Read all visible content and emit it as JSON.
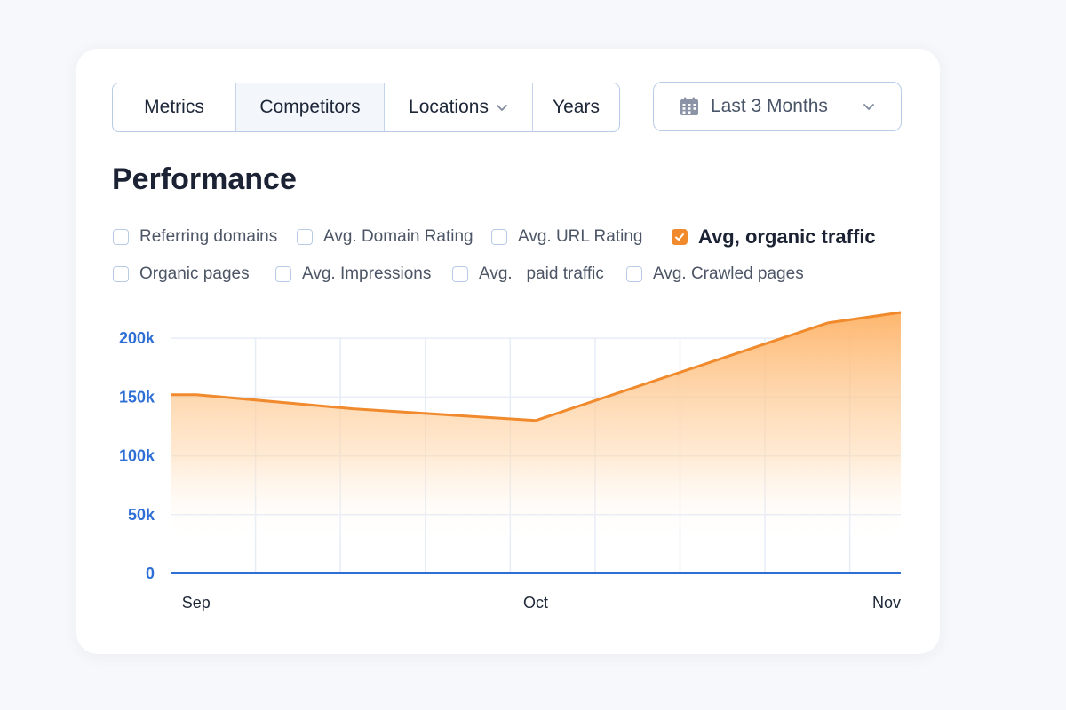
{
  "toolbar": {
    "segments": [
      {
        "label": "Metrics"
      },
      {
        "label": "Competitors"
      },
      {
        "label": "Locations"
      },
      {
        "label": "Years"
      }
    ],
    "date_range": {
      "label": "Last 3 Months",
      "icon": "calendar-icon"
    }
  },
  "section": {
    "title": "Performance"
  },
  "metrics": [
    {
      "label": "Referring domains",
      "checked": false
    },
    {
      "label": "Avg. Domain Rating",
      "checked": false
    },
    {
      "label": "Avg. URL Rating",
      "checked": false
    },
    {
      "label": "Avg, organic traffic",
      "checked": true
    },
    {
      "label": "Organic pages",
      "checked": false
    },
    {
      "label": "Avg. Impressions",
      "checked": false
    },
    {
      "label": "Avg.   paid traffic",
      "checked": false
    },
    {
      "label": "Avg. Crawled pages",
      "checked": false
    }
  ],
  "colors": {
    "accent": "#f08a2c",
    "axis_blue": "#2e6fd6",
    "grid": "#e6edf7"
  },
  "chart_data": {
    "type": "area",
    "title": "",
    "series": [
      {
        "name": "Avg, organic traffic",
        "x": [
          0,
          0.07,
          0.5,
          1.0,
          1.8,
          2.0
        ],
        "values": [
          152000,
          152000,
          140000,
          130000,
          213000,
          222000
        ]
      }
    ],
    "x_ticks": [
      {
        "value": 0.07,
        "label": "Sep"
      },
      {
        "value": 1.0,
        "label": "Oct"
      },
      {
        "value": 2.0,
        "label": "Nov"
      }
    ],
    "y_ticks": [
      {
        "value": 0,
        "label": "0"
      },
      {
        "value": 50000,
        "label": "50k"
      },
      {
        "value": 100000,
        "label": "100k"
      },
      {
        "value": 150000,
        "label": "150k"
      },
      {
        "value": 200000,
        "label": "200k"
      }
    ],
    "xlim": [
      0,
      2.0
    ],
    "ylim": [
      0,
      222000
    ],
    "grid": true
  }
}
